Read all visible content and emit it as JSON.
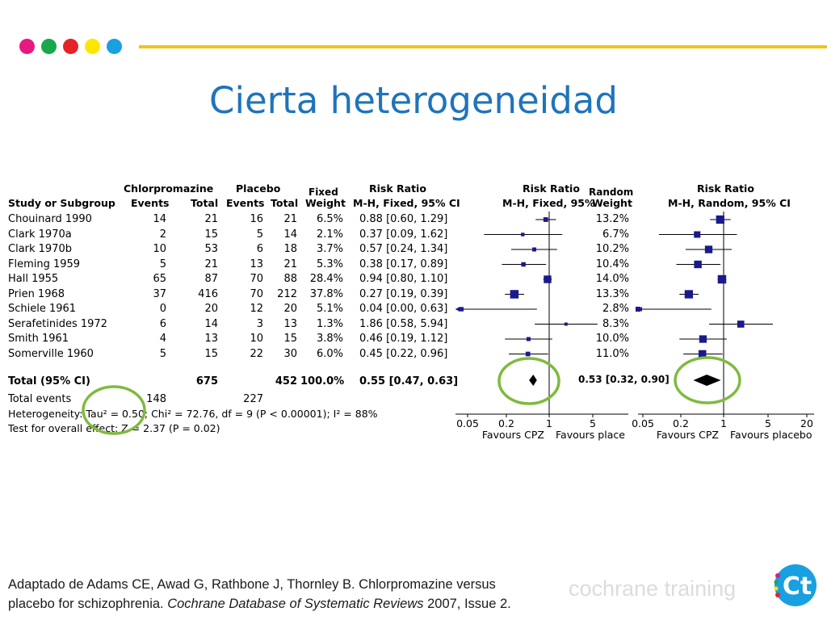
{
  "slide": {
    "title": "Cierta heterogeneidad",
    "dot_colors": [
      "#e6197f",
      "#19a84b",
      "#e62128",
      "#ffe600",
      "#19a0e0"
    ],
    "line_color": "#f2c413",
    "circle_color": "#7fba3f",
    "accent": "#1f74bb"
  },
  "table": {
    "group_header_1": "Chlorpromazine",
    "group_header_2": "Placebo",
    "fixed_label": "Fixed",
    "random_label": "Random",
    "col_study": "Study or Subgroup",
    "col_events": "Events",
    "col_total": "Total",
    "col_events2": "Events",
    "col_total2": "Total",
    "col_weight": "Weight",
    "col_rr": "Risk Ratio",
    "col_rr_method": "M-H, Fixed, 95% CI",
    "plot1_title": "Risk Ratio",
    "plot1_method": "M-H, Fixed, 95%",
    "random_weight_label": "Weight",
    "plot2_title": "Risk Ratio",
    "plot2_method": "M-H, Random, 95% CI",
    "rows": [
      {
        "study": "Chouinard 1990",
        "e1": "14",
        "t1": "21",
        "e2": "16",
        "t2": "21",
        "w": "6.5%",
        "rr": "0.88 [0.60, 1.29]",
        "rw": "13.2%"
      },
      {
        "study": "Clark 1970a",
        "e1": "2",
        "t1": "15",
        "e2": "5",
        "t2": "14",
        "w": "2.1%",
        "rr": "0.37 [0.09, 1.62]",
        "rw": "6.7%"
      },
      {
        "study": "Clark 1970b",
        "e1": "10",
        "t1": "53",
        "e2": "6",
        "t2": "18",
        "w": "3.7%",
        "rr": "0.57 [0.24, 1.34]",
        "rw": "10.2%"
      },
      {
        "study": "Fleming 1959",
        "e1": "5",
        "t1": "21",
        "e2": "13",
        "t2": "21",
        "w": "5.3%",
        "rr": "0.38 [0.17, 0.89]",
        "rw": "10.4%"
      },
      {
        "study": "Hall 1955",
        "e1": "65",
        "t1": "87",
        "e2": "70",
        "t2": "88",
        "w": "28.4%",
        "rr": "0.94 [0.80, 1.10]",
        "rw": "14.0%"
      },
      {
        "study": "Prien 1968",
        "e1": "37",
        "t1": "416",
        "e2": "70",
        "t2": "212",
        "w": "37.8%",
        "rr": "0.27 [0.19, 0.39]",
        "rw": "13.3%"
      },
      {
        "study": "Schiele 1961",
        "e1": "0",
        "t1": "20",
        "e2": "12",
        "t2": "20",
        "w": "5.1%",
        "rr": "0.04 [0.00, 0.63]",
        "rw": "2.8%"
      },
      {
        "study": "Serafetinides 1972",
        "e1": "6",
        "t1": "14",
        "e2": "3",
        "t2": "13",
        "w": "1.3%",
        "rr": "1.86 [0.58, 5.94]",
        "rw": "8.3%"
      },
      {
        "study": "Smith 1961",
        "e1": "4",
        "t1": "13",
        "e2": "10",
        "t2": "15",
        "w": "3.8%",
        "rr": "0.46 [0.19, 1.12]",
        "rw": "10.0%"
      },
      {
        "study": "Somerville 1960",
        "e1": "5",
        "t1": "15",
        "e2": "22",
        "t2": "30",
        "w": "6.0%",
        "rr": "0.45 [0.22, 0.96]",
        "rw": "11.0%"
      }
    ],
    "total_label": "Total (95% CI)",
    "total_t1": "675",
    "total_t2": "452",
    "total_w": "100.0%",
    "total_rr": "0.55 [0.47, 0.63]",
    "random_total_rr": "0.53 [0.32, 0.90]",
    "total_events_label": "Total events",
    "total_e1": "148",
    "total_e2": "227",
    "heterogeneity": "Heterogeneity: Tau² = 0.50; Chi² = 72.76, df = 9 (P < 0.00001); I² = 88%",
    "overall_effect": "Test for overall effect: Z = 2.37 (P = 0.02)"
  },
  "chart_data": [
    {
      "type": "scatter",
      "title": "Risk Ratio",
      "subtitle": "M-H, Fixed, 95%",
      "scale": "log",
      "xlim": [
        0.05,
        5
      ],
      "xticks": [
        "0.05",
        "0.2",
        "1",
        "5"
      ],
      "x_ref": 1,
      "favours_left": "Favours CPZ",
      "favours_right": "Favours place",
      "series": [
        {
          "estimate": [
            0.88,
            0.37,
            0.57,
            0.38,
            0.94,
            0.27,
            0.04,
            1.86,
            0.46,
            0.45
          ],
          "ci_low": [
            0.6,
            0.09,
            0.24,
            0.17,
            0.8,
            0.19,
            0.0,
            0.58,
            0.19,
            0.22
          ],
          "ci_high": [
            1.29,
            1.62,
            1.34,
            0.89,
            1.1,
            0.39,
            0.63,
            5.94,
            1.12,
            0.96
          ],
          "weight": [
            6.5,
            2.1,
            3.7,
            5.3,
            28.4,
            37.8,
            5.1,
            1.3,
            3.8,
            6.0
          ]
        }
      ],
      "pooled": {
        "estimate": 0.55,
        "ci_low": 0.47,
        "ci_high": 0.63
      }
    },
    {
      "type": "scatter",
      "title": "Risk Ratio",
      "subtitle": "M-H, Random, 95% CI",
      "scale": "log",
      "xlim": [
        0.05,
        20
      ],
      "xticks": [
        "0.05",
        "0.2",
        "1",
        "5",
        "20"
      ],
      "x_ref": 1,
      "favours_left": "Favours CPZ",
      "favours_right": "Favours placebo",
      "series": [
        {
          "estimate": [
            0.88,
            0.37,
            0.57,
            0.38,
            0.94,
            0.27,
            0.04,
            1.86,
            0.46,
            0.45
          ],
          "ci_low": [
            0.6,
            0.09,
            0.24,
            0.17,
            0.8,
            0.19,
            0.0,
            0.58,
            0.19,
            0.22
          ],
          "ci_high": [
            1.29,
            1.62,
            1.34,
            0.89,
            1.1,
            0.39,
            0.63,
            5.94,
            1.12,
            0.96
          ],
          "weight": [
            13.2,
            6.7,
            10.2,
            10.4,
            14.0,
            13.3,
            2.8,
            8.3,
            10.0,
            11.0
          ]
        }
      ],
      "pooled": {
        "estimate": 0.53,
        "ci_low": 0.32,
        "ci_high": 0.9
      }
    }
  ],
  "footer": {
    "citation_line1": "Adaptado de Adams CE, Awad G, Rathbone J, Thornley B. Chlorpromazine versus",
    "citation_line2_pre": "placebo for schizophrenia. ",
    "citation_journal": "Cochrane Database of Systematic Reviews",
    "citation_line2_post": " 2007, Issue 2.",
    "watermark": "cochrane training",
    "logo_text": "Ct"
  }
}
